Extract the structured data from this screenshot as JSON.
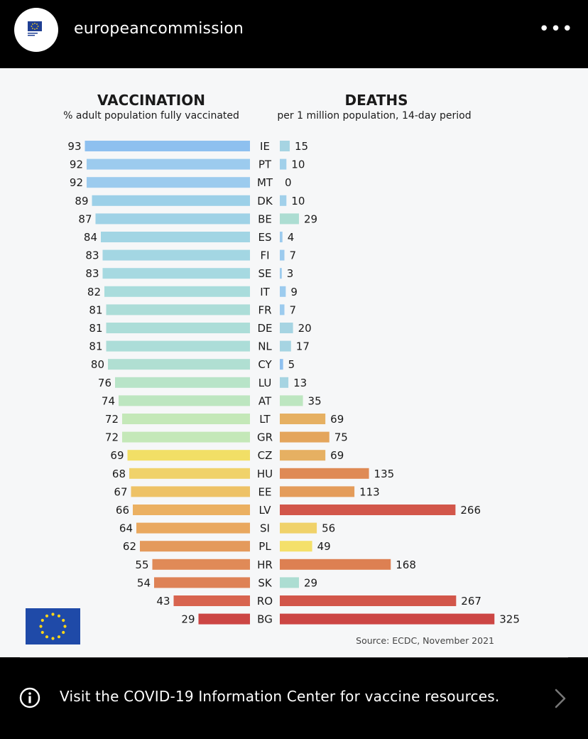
{
  "header": {
    "username": "europeancommission",
    "logo_text": "European Commission"
  },
  "chart_data": {
    "type": "bar",
    "categories": [
      "IE",
      "PT",
      "MT",
      "DK",
      "BE",
      "ES",
      "FI",
      "SE",
      "IT",
      "FR",
      "DE",
      "NL",
      "CY",
      "LU",
      "AT",
      "LT",
      "GR",
      "CZ",
      "HU",
      "EE",
      "LV",
      "SI",
      "PL",
      "HR",
      "SK",
      "RO",
      "BG"
    ],
    "series": [
      {
        "name": "VACCINATION",
        "subtitle": "% adult population fully vaccinated",
        "values": [
          93,
          92,
          92,
          89,
          87,
          84,
          83,
          83,
          82,
          81,
          81,
          81,
          80,
          76,
          74,
          72,
          72,
          69,
          68,
          67,
          66,
          64,
          62,
          55,
          54,
          43,
          29
        ]
      },
      {
        "name": "DEATHS",
        "subtitle": "per 1 million population, 14-day period",
        "values": [
          15,
          10,
          0,
          10,
          29,
          4,
          7,
          3,
          9,
          7,
          20,
          17,
          5,
          13,
          35,
          69,
          75,
          69,
          135,
          113,
          266,
          56,
          49,
          168,
          29,
          267,
          325
        ]
      }
    ],
    "vacc_title": "VACCINATION",
    "vacc_subtitle": "% adult population fully vaccinated",
    "deaths_title": "DEATHS",
    "deaths_subtitle": "per 1 million population, 14-day period",
    "source": "Source: ECDC, November 2021",
    "colors": {
      "vacc": [
        "#8ec0ef",
        "#9ccbee",
        "#9ccbee",
        "#9cd0e8",
        "#9fd2e6",
        "#a2d5e4",
        "#a3d6e3",
        "#a6d9e1",
        "#a9dcdc",
        "#acddd8",
        "#acddd8",
        "#acddd8",
        "#b0dfd2",
        "#b8e4c8",
        "#bde6c0",
        "#c4e8b8",
        "#c4e8b8",
        "#f2df66",
        "#f0d26a",
        "#eec266",
        "#ebb061",
        "#e9a85f",
        "#e49a5c",
        "#e08a57",
        "#de8256",
        "#d8644f",
        "#cc4644"
      ],
      "deaths": [
        "#a6d4e2",
        "#a1d0ea",
        "#9ccbee",
        "#a1d0ea",
        "#acddd2",
        "#9ccbee",
        "#9ccbee",
        "#9ccbee",
        "#9ccbee",
        "#9ccbee",
        "#a6d4e2",
        "#a6d4e2",
        "#8ec0ef",
        "#a6d4e2",
        "#bde6c0",
        "#e6b062",
        "#e4a55c",
        "#e6b062",
        "#df8a55",
        "#e49c5a",
        "#d2564a",
        "#f0d26a",
        "#f4e06a",
        "#dd8052",
        "#acddd2",
        "#d2564a",
        "#cc4644"
      ]
    }
  },
  "infobar": {
    "text": "Visit the COVID-19 Information Center for vaccine resources."
  }
}
